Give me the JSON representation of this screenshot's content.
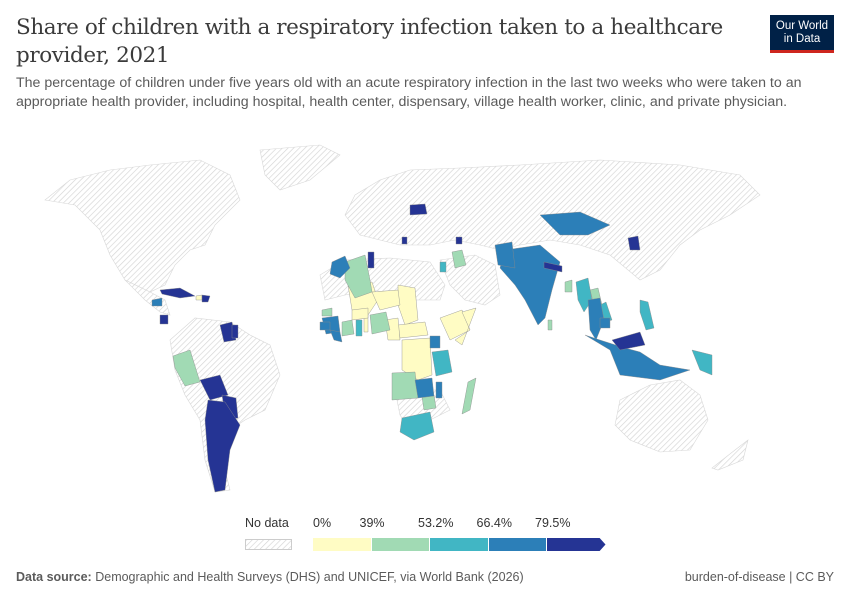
{
  "header": {
    "title": "Share of children with a respiratory infection taken to a healthcare provider, 2021",
    "subtitle": "The percentage of children under five years old with an acute respiratory infection in the last two weeks who were taken to an appropriate health provider, including hospital, health center, dispensary, village health worker, clinic, and private physician.",
    "logo_line1": "Our World",
    "logo_line2": "in Data"
  },
  "legend": {
    "no_data_label": "No data",
    "bins": [
      {
        "label": "0%",
        "color": "#fffcc4"
      },
      {
        "label": "39%",
        "color": "#a1dab4"
      },
      {
        "label": "53.2%",
        "color": "#41b6c4"
      },
      {
        "label": "66.4%",
        "color": "#2c7fb8"
      },
      {
        "label": "79.5%",
        "color": "#253494"
      }
    ]
  },
  "chart_data": {
    "type": "choropleth",
    "title": "Share of children with a respiratory infection taken to a healthcare provider, 2021",
    "year": 2021,
    "unit": "%",
    "bin_edges": [
      0,
      39,
      53.2,
      66.4,
      79.5
    ],
    "bin_labels": [
      "0%",
      "39%",
      "53.2%",
      "66.4%",
      "79.5%"
    ],
    "colors": [
      "#fffcc4",
      "#a1dab4",
      "#41b6c4",
      "#2c7fb8",
      "#253494"
    ],
    "no_data_color": "hatched grey",
    "countries_by_bin": {
      "0-39": [
        "Mali",
        "Chad",
        "Ethiopia",
        "Somalia",
        "Democratic Republic of Congo",
        "Central African Republic",
        "Cameroon",
        "Benin",
        "Haiti",
        "Niger",
        "Burkina Faso"
      ],
      "39-53.2": [
        "Algeria",
        "Peru",
        "Nigeria",
        "Côte d'Ivoire",
        "Angola",
        "Madagascar",
        "Iraq",
        "Zimbabwe",
        "Sri Lanka",
        "Bangladesh",
        "Laos",
        "Senegal"
      ],
      "53.2-66.4": [
        "Ghana",
        "Tanzania",
        "South Africa",
        "Myanmar",
        "Philippines",
        "Papua New Guinea",
        "Jordan",
        "Vietnam"
      ],
      "66.4-79.5": [
        "Morocco",
        "Honduras",
        "Guinea",
        "Liberia",
        "Sierra Leone",
        "Uganda",
        "Zambia",
        "Malawi",
        "India",
        "Pakistan",
        "Mongolia",
        "Thailand",
        "Cambodia",
        "Indonesia"
      ],
      "79.5+": [
        "Cuba",
        "Dominican Republic",
        "Costa Rica",
        "Guyana",
        "Suriname",
        "Bolivia",
        "Paraguay",
        "Argentina",
        "Tunisia",
        "Belarus",
        "Montenegro",
        "Armenia",
        "Nepal",
        "North Korea",
        "Malaysia"
      ]
    }
  },
  "footer": {
    "source_label": "Data source:",
    "source_text": "Demographic and Health Surveys (DHS) and UNICEF, via World Bank (2026)",
    "right_text": "burden-of-disease | CC BY"
  }
}
